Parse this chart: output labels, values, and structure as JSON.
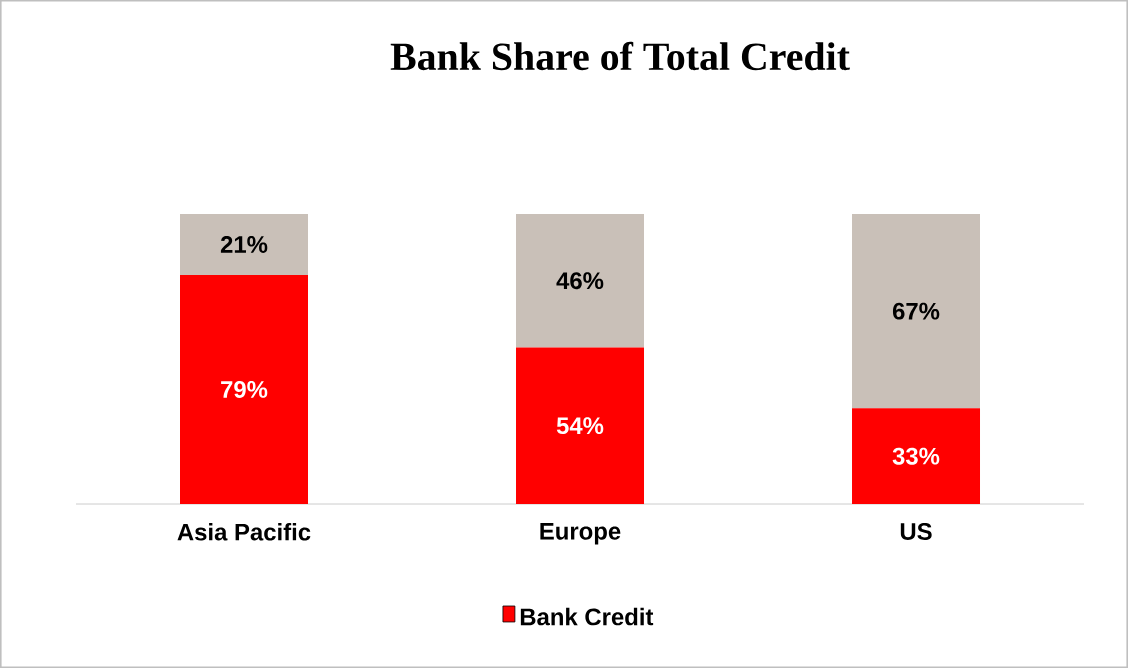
{
  "chart_data": {
    "type": "bar",
    "stacked": true,
    "title": "Bank Share of Total Credit",
    "categories": [
      "Asia Pacific",
      "Europe",
      "US"
    ],
    "series": [
      {
        "name": "Bank Credit",
        "color": "#ff0000",
        "values": [
          79,
          54,
          33
        ],
        "value_labels": [
          "79%",
          "54%",
          "33%"
        ]
      },
      {
        "color": "#c9c0b8",
        "values": [
          21,
          46,
          67
        ],
        "value_labels": [
          "21%",
          "46%",
          "67%"
        ]
      }
    ],
    "legend": "bottom"
  }
}
